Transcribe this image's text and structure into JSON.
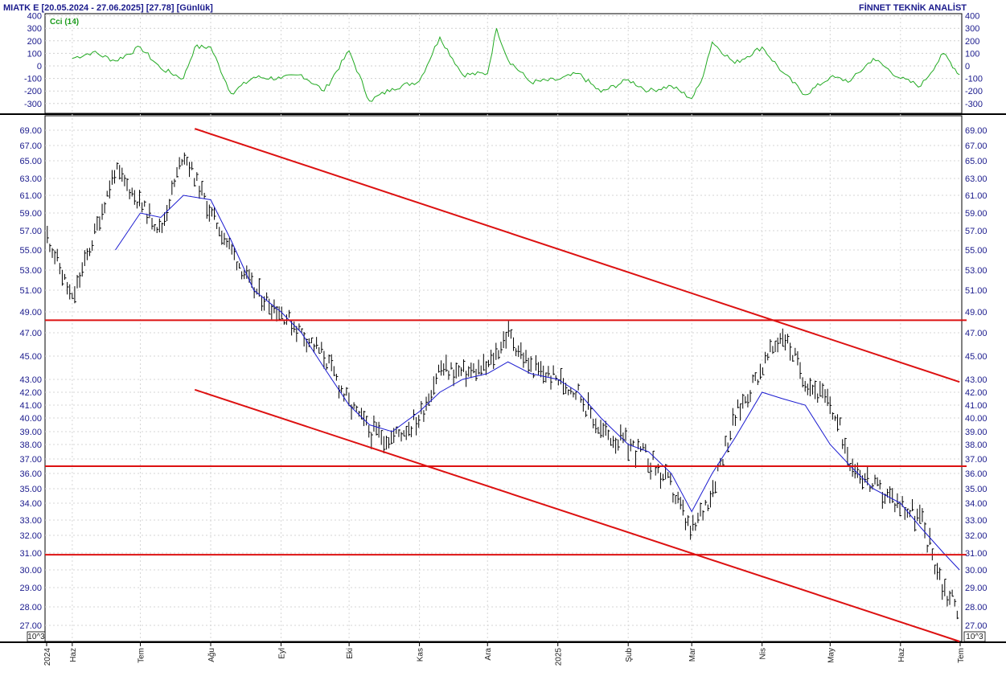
{
  "header": {
    "title": "MIATK E  [20.05.2024 - 27.06.2025]  [27.78]  [Günlük]",
    "brand": "FİNNET TEKNİK ANALİST"
  },
  "colors": {
    "text": "#1a1a8c",
    "price_bars": "#000000",
    "moving_average": "#1a1ad0",
    "trend_lines": "#dd1111",
    "cci_line": "#22aa22"
  },
  "indicator_panel": {
    "label": "Cci (14)",
    "ticks": [
      400,
      300,
      200,
      100,
      0,
      -100,
      -200,
      -300
    ]
  },
  "price_panel": {
    "scale_note": "10^3",
    "ticks": [
      "69.00",
      "67.00",
      "65.00",
      "63.00",
      "61.00",
      "59.00",
      "57.00",
      "55.00",
      "53.00",
      "51.00",
      "49.00",
      "47.00",
      "45.00",
      "43.00",
      "42.00",
      "41.00",
      "40.00",
      "39.00",
      "38.00",
      "37.00",
      "36.00",
      "35.00",
      "34.00",
      "33.00",
      "32.00",
      "31.00",
      "30.00",
      "29.00",
      "28.00",
      "27.00"
    ]
  },
  "x_axis": {
    "labels": [
      "2024",
      "Haz",
      "Tem",
      "Ağu",
      "Eyl",
      "Eki",
      "Kas",
      "Ara",
      "2025",
      "Şub",
      "Mar",
      "Nis",
      "May",
      "Haz",
      "Tem"
    ]
  },
  "chart_data": [
    {
      "type": "line",
      "title": "Cci (14)",
      "ylim": [
        -400,
        400
      ],
      "y_ticks": [
        400,
        300,
        200,
        100,
        0,
        -100,
        -200,
        -300
      ],
      "x": [
        "2024-06-01",
        "2024-06-10",
        "2024-06-20",
        "2024-07-01",
        "2024-07-10",
        "2024-07-20",
        "2024-07-25",
        "2024-08-01",
        "2024-08-10",
        "2024-08-20",
        "2024-09-01",
        "2024-09-10",
        "2024-09-20",
        "2024-10-01",
        "2024-10-10",
        "2024-10-20",
        "2024-11-01",
        "2024-11-10",
        "2024-11-20",
        "2024-12-01",
        "2024-12-05",
        "2024-12-10",
        "2024-12-20",
        "2025-01-01",
        "2025-01-10",
        "2025-01-20",
        "2025-02-01",
        "2025-02-10",
        "2025-02-20",
        "2025-03-01",
        "2025-03-05",
        "2025-03-10",
        "2025-03-20",
        "2025-04-01",
        "2025-04-10",
        "2025-04-20",
        "2025-05-01",
        "2025-05-10",
        "2025-05-20",
        "2025-06-01",
        "2025-06-10",
        "2025-06-20",
        "2025-06-27"
      ],
      "series": [
        {
          "values": [
            60,
            110,
            40,
            150,
            -20,
            -100,
            150,
            150,
            -220,
            -90,
            -100,
            -70,
            -200,
            120,
            -280,
            -180,
            -120,
            230,
            -70,
            -60,
            300,
            50,
            -130,
            -110,
            -60,
            -210,
            -110,
            -200,
            -160,
            -260,
            -130,
            190,
            20,
            150,
            -50,
            -230,
            -90,
            -120,
            60,
            -100,
            -160,
            100,
            -70
          ]
        }
      ]
    },
    {
      "type": "line",
      "y_ticks": [
        69,
        67,
        65,
        63,
        61,
        59,
        57,
        55,
        53,
        51,
        49,
        47,
        45,
        43,
        42,
        41,
        40,
        39,
        38,
        37,
        36,
        35,
        34,
        33,
        32,
        31,
        30,
        29,
        28,
        27
      ],
      "ylim": [
        26.5,
        70.5
      ],
      "x": [
        "2024-05-20",
        "2024-06-01",
        "2024-06-10",
        "2024-06-20",
        "2024-07-01",
        "2024-07-10",
        "2024-07-20",
        "2024-08-01",
        "2024-08-10",
        "2024-08-20",
        "2024-09-01",
        "2024-09-10",
        "2024-09-20",
        "2024-10-01",
        "2024-10-10",
        "2024-10-20",
        "2024-11-01",
        "2024-11-10",
        "2024-11-20",
        "2024-12-01",
        "2024-12-10",
        "2024-12-20",
        "2025-01-01",
        "2025-01-10",
        "2025-01-20",
        "2025-02-01",
        "2025-02-10",
        "2025-02-20",
        "2025-03-01",
        "2025-03-10",
        "2025-03-20",
        "2025-04-01",
        "2025-04-10",
        "2025-04-20",
        "2025-05-01",
        "2025-05-10",
        "2025-05-20",
        "2025-06-01",
        "2025-06-10",
        "2025-06-20",
        "2025-06-27"
      ],
      "series": [
        {
          "values": [
            57,
            50,
            56,
            64,
            60,
            57,
            66,
            59,
            55,
            51,
            49,
            47,
            45,
            41,
            39,
            38.5,
            40,
            44,
            43.5,
            44,
            47,
            44,
            43,
            42,
            39,
            38,
            37,
            35,
            32,
            35,
            40,
            44,
            47,
            43,
            41,
            37,
            35,
            34,
            33,
            29,
            27.8
          ]
        },
        {
          "values": [
            null,
            null,
            null,
            55,
            59,
            58.5,
            61,
            60.5,
            56,
            51,
            49,
            47,
            44,
            41,
            39.5,
            39,
            40.5,
            42,
            43,
            43.5,
            44.5,
            43.5,
            43,
            42,
            40,
            38,
            37.5,
            36,
            33.5,
            36,
            38.5,
            42,
            41.5,
            41,
            38,
            36.5,
            35,
            34,
            32.5,
            31,
            30
          ]
        }
      ],
      "horizontal_lines": [
        48.2,
        36.5,
        30.9
      ],
      "trend_lines": [
        {
          "from": {
            "x": "2024-07-25",
            "y": 69.2
          },
          "to": {
            "x": "2025-06-27",
            "y": 42.8
          }
        },
        {
          "from": {
            "x": "2024-07-25",
            "y": 42.2
          },
          "to": {
            "x": "2025-06-27",
            "y": 26.5
          }
        }
      ]
    }
  ]
}
